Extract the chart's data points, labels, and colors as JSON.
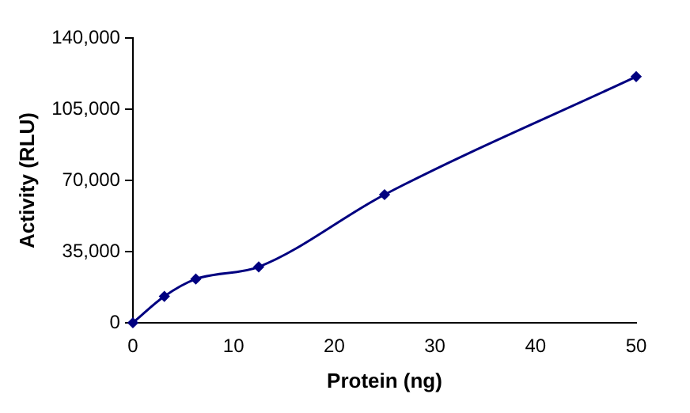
{
  "chart_data": {
    "type": "line",
    "xlabel": "Protein (ng)",
    "ylabel": "Activity (RLU)",
    "x": [
      0,
      3.125,
      6.25,
      12.5,
      25,
      50
    ],
    "series": [
      {
        "color": "#000080",
        "values": [
          0,
          13000,
          21500,
          27500,
          63000,
          121000
        ]
      }
    ],
    "xlim": [
      0,
      50
    ],
    "xticks": [
      0,
      10,
      20,
      30,
      40,
      50
    ],
    "ylim": [
      0,
      140000
    ],
    "yticks": [
      {
        "value": 0,
        "label": "0"
      },
      {
        "value": 35000,
        "label": "35,000"
      },
      {
        "value": 70000,
        "label": "70,000"
      },
      {
        "value": 105000,
        "label": "105,000"
      },
      {
        "value": 140000,
        "label": "140,000"
      }
    ],
    "grid": false,
    "legend": false,
    "marker": "diamond",
    "line_style": "solid"
  }
}
